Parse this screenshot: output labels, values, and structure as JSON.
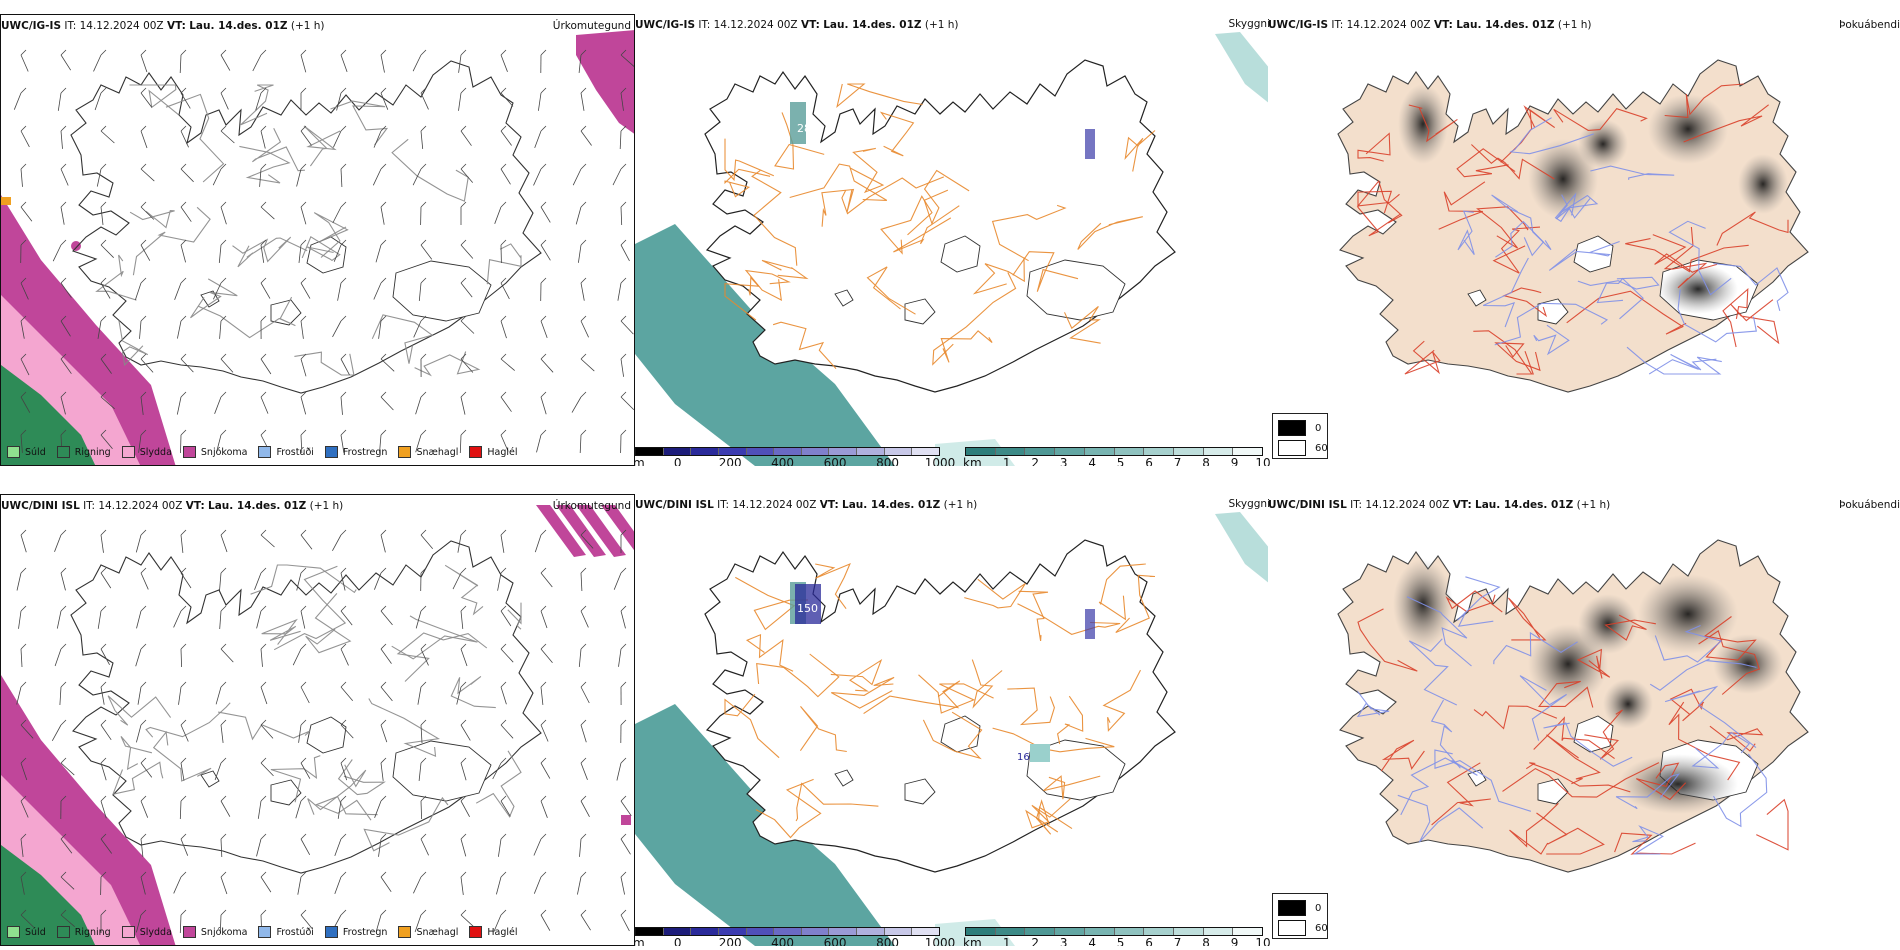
{
  "rows": [
    {
      "model": "UWC/IG-IS",
      "it_label": "IT:",
      "it_value": "14.12.2024 00Z",
      "vt_label": "VT:",
      "vt_value": "Lau. 14.des. 01Z",
      "lead": "(+1 h)"
    },
    {
      "model": "UWC/DINI ISL",
      "it_label": "IT:",
      "it_value": "14.12.2024 00Z",
      "vt_label": "VT:",
      "vt_value": "Lau. 14.des. 01Z",
      "lead": "(+1 h)"
    }
  ],
  "panel_titles": {
    "precip_type": "Úrkomutegund",
    "ceiling": "Skyggni",
    "fog": "Þokuábendi"
  },
  "precip_legend": [
    {
      "label": "Súld",
      "color": "#8fe08f"
    },
    {
      "label": "Rigning",
      "color": "#2e8b57"
    },
    {
      "label": "Slydda",
      "color": "#f4a6d0"
    },
    {
      "label": "Snjókoma",
      "color": "#c0469a"
    },
    {
      "label": "Frostúði",
      "color": "#90b8ea"
    },
    {
      "label": "Frostregn",
      "color": "#2f6fc0"
    },
    {
      "label": "Snæhagl",
      "color": "#f0a020"
    },
    {
      "label": "Haglél",
      "color": "#e01010"
    }
  ],
  "ceiling_scale": {
    "unit": "m",
    "ticks": [
      "0",
      "200",
      "400",
      "600",
      "800",
      "1000"
    ],
    "colors": [
      "#000000",
      "#1c1c7a",
      "#2a2a9a",
      "#3b3bb0",
      "#5050b8",
      "#6a6ac4",
      "#8080cc",
      "#9a9ad6",
      "#b0b0de",
      "#c8c8e8",
      "#e0e0f2"
    ]
  },
  "visibility_scale": {
    "unit": "km",
    "ticks": [
      "1",
      "2",
      "3",
      "4",
      "5",
      "6",
      "7",
      "8",
      "9",
      "10"
    ],
    "colors": [
      "#2d7d7a",
      "#3d8a87",
      "#4f9895",
      "#63a6a3",
      "#78b4b1",
      "#8fc2bf",
      "#a6d0cd",
      "#bedeDb",
      "#d6ebe9",
      "#f0f8f7"
    ]
  },
  "fog_scale": {
    "items": [
      {
        "label": "0",
        "color": "#000000"
      },
      {
        "label": "60",
        "color": "#ffffff"
      }
    ]
  },
  "map_labels": {
    "row1_ceiling_value": "28",
    "row2_ceiling_value": "150",
    "row2_ceiling_value2": "16"
  },
  "colors": {
    "snow": "#c0469a",
    "sleet": "#f4a6d0",
    "rain": "#2e8b57",
    "teal": "#3f9590",
    "roads_orange": "#e8882c",
    "roads_red": "#d9402a",
    "rivers_blue": "#7f90e8",
    "land_tan": "#f3dfcc"
  }
}
